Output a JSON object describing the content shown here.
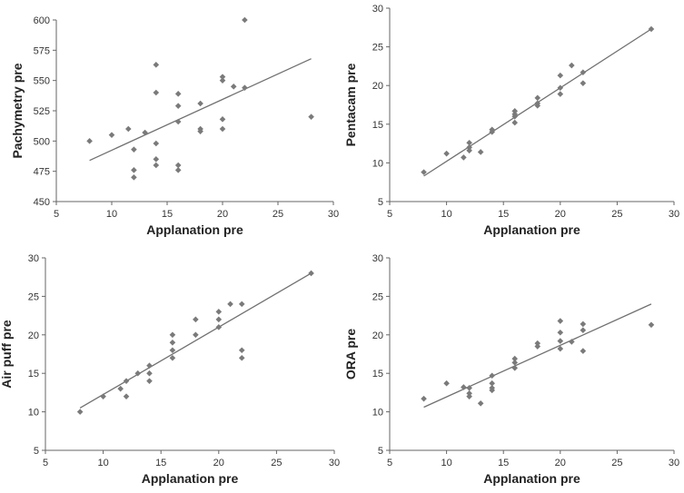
{
  "chart_data": [
    {
      "type": "scatter",
      "xlabel": "Applanation pre",
      "ylabel": "Pachymetry pre",
      "xlim": [
        5,
        30
      ],
      "ylim": [
        450,
        600
      ],
      "xticks": [
        5,
        10,
        15,
        20,
        25,
        30
      ],
      "yticks": [
        450,
        475,
        500,
        525,
        550,
        575,
        600
      ],
      "points": [
        {
          "x": 8,
          "y": 500
        },
        {
          "x": 10,
          "y": 505
        },
        {
          "x": 11.5,
          "y": 510
        },
        {
          "x": 12,
          "y": 493
        },
        {
          "x": 12,
          "y": 476
        },
        {
          "x": 12,
          "y": 470
        },
        {
          "x": 13,
          "y": 507
        },
        {
          "x": 14,
          "y": 563
        },
        {
          "x": 14,
          "y": 540
        },
        {
          "x": 14,
          "y": 498
        },
        {
          "x": 14,
          "y": 485
        },
        {
          "x": 14,
          "y": 480
        },
        {
          "x": 16,
          "y": 539
        },
        {
          "x": 16,
          "y": 529
        },
        {
          "x": 16,
          "y": 516
        },
        {
          "x": 16,
          "y": 480
        },
        {
          "x": 16,
          "y": 476
        },
        {
          "x": 18,
          "y": 531
        },
        {
          "x": 18,
          "y": 510
        },
        {
          "x": 18,
          "y": 508
        },
        {
          "x": 20,
          "y": 553
        },
        {
          "x": 20,
          "y": 550
        },
        {
          "x": 20,
          "y": 518
        },
        {
          "x": 20,
          "y": 510
        },
        {
          "x": 21,
          "y": 545
        },
        {
          "x": 22,
          "y": 600
        },
        {
          "x": 22,
          "y": 544
        },
        {
          "x": 28,
          "y": 520
        }
      ],
      "trendline": {
        "x": [
          8,
          28
        ],
        "y": [
          484,
          568
        ]
      }
    },
    {
      "type": "scatter",
      "xlabel": "Applanation pre",
      "ylabel": "Pentacam pre",
      "xlim": [
        5,
        30
      ],
      "ylim": [
        5,
        30
      ],
      "xticks": [
        5,
        10,
        15,
        20,
        25,
        30
      ],
      "yticks": [
        5,
        10,
        15,
        20,
        25,
        30
      ],
      "points": [
        {
          "x": 8,
          "y": 8.8
        },
        {
          "x": 10,
          "y": 11.2
        },
        {
          "x": 11.5,
          "y": 10.7
        },
        {
          "x": 12,
          "y": 12.6
        },
        {
          "x": 12,
          "y": 12.0
        },
        {
          "x": 12,
          "y": 11.6
        },
        {
          "x": 13,
          "y": 11.4
        },
        {
          "x": 14,
          "y": 14.3
        },
        {
          "x": 14,
          "y": 14.0
        },
        {
          "x": 16,
          "y": 16.7
        },
        {
          "x": 16,
          "y": 16.3
        },
        {
          "x": 16,
          "y": 16.0
        },
        {
          "x": 16,
          "y": 15.2
        },
        {
          "x": 18,
          "y": 18.4
        },
        {
          "x": 18,
          "y": 17.7
        },
        {
          "x": 18,
          "y": 17.4
        },
        {
          "x": 20,
          "y": 21.3
        },
        {
          "x": 20,
          "y": 19.7
        },
        {
          "x": 20,
          "y": 18.9
        },
        {
          "x": 21,
          "y": 22.6
        },
        {
          "x": 22,
          "y": 21.7
        },
        {
          "x": 22,
          "y": 20.3
        },
        {
          "x": 28,
          "y": 27.3
        }
      ],
      "trendline": {
        "x": [
          8,
          28
        ],
        "y": [
          8.3,
          27.3
        ]
      }
    },
    {
      "type": "scatter",
      "xlabel": "Applanation pre",
      "ylabel": "Air puff pre",
      "xlim": [
        5,
        30
      ],
      "ylim": [
        5,
        30
      ],
      "xticks": [
        5,
        10,
        15,
        20,
        25,
        30
      ],
      "yticks": [
        5,
        10,
        15,
        20,
        25,
        30
      ],
      "points": [
        {
          "x": 8,
          "y": 10
        },
        {
          "x": 10,
          "y": 12
        },
        {
          "x": 11.5,
          "y": 13
        },
        {
          "x": 12,
          "y": 14
        },
        {
          "x": 12,
          "y": 12
        },
        {
          "x": 13,
          "y": 15
        },
        {
          "x": 14,
          "y": 16
        },
        {
          "x": 14,
          "y": 15
        },
        {
          "x": 14,
          "y": 14
        },
        {
          "x": 16,
          "y": 20
        },
        {
          "x": 16,
          "y": 19
        },
        {
          "x": 16,
          "y": 18
        },
        {
          "x": 16,
          "y": 17
        },
        {
          "x": 18,
          "y": 22
        },
        {
          "x": 18,
          "y": 20
        },
        {
          "x": 20,
          "y": 23
        },
        {
          "x": 20,
          "y": 22
        },
        {
          "x": 20,
          "y": 21
        },
        {
          "x": 21,
          "y": 24
        },
        {
          "x": 22,
          "y": 24
        },
        {
          "x": 22,
          "y": 18
        },
        {
          "x": 22,
          "y": 17
        },
        {
          "x": 28,
          "y": 28
        }
      ],
      "trendline": {
        "x": [
          8,
          28
        ],
        "y": [
          10.5,
          28
        ]
      }
    },
    {
      "type": "scatter",
      "xlabel": "Applanation pre",
      "ylabel": "ORA pre",
      "xlim": [
        5,
        30
      ],
      "ylim": [
        5,
        30
      ],
      "xticks": [
        5,
        10,
        15,
        20,
        25,
        30
      ],
      "yticks": [
        5,
        10,
        15,
        20,
        25,
        30
      ],
      "points": [
        {
          "x": 8,
          "y": 11.7
        },
        {
          "x": 10,
          "y": 13.7
        },
        {
          "x": 11.5,
          "y": 13.2
        },
        {
          "x": 12,
          "y": 13.1
        },
        {
          "x": 12,
          "y": 12.4
        },
        {
          "x": 12,
          "y": 12.0
        },
        {
          "x": 13,
          "y": 11.1
        },
        {
          "x": 14,
          "y": 14.7
        },
        {
          "x": 14,
          "y": 13.7
        },
        {
          "x": 14,
          "y": 13.1
        },
        {
          "x": 14,
          "y": 12.8
        },
        {
          "x": 16,
          "y": 16.9
        },
        {
          "x": 16,
          "y": 16.4
        },
        {
          "x": 16,
          "y": 15.7
        },
        {
          "x": 18,
          "y": 18.9
        },
        {
          "x": 18,
          "y": 18.5
        },
        {
          "x": 20,
          "y": 21.8
        },
        {
          "x": 20,
          "y": 20.3
        },
        {
          "x": 20,
          "y": 19.2
        },
        {
          "x": 20,
          "y": 18.2
        },
        {
          "x": 21,
          "y": 19.1
        },
        {
          "x": 22,
          "y": 21.4
        },
        {
          "x": 22,
          "y": 20.6
        },
        {
          "x": 22,
          "y": 17.9
        },
        {
          "x": 28,
          "y": 21.3
        }
      ],
      "trendline": {
        "x": [
          8,
          28
        ],
        "y": [
          10.6,
          24
        ]
      }
    }
  ]
}
